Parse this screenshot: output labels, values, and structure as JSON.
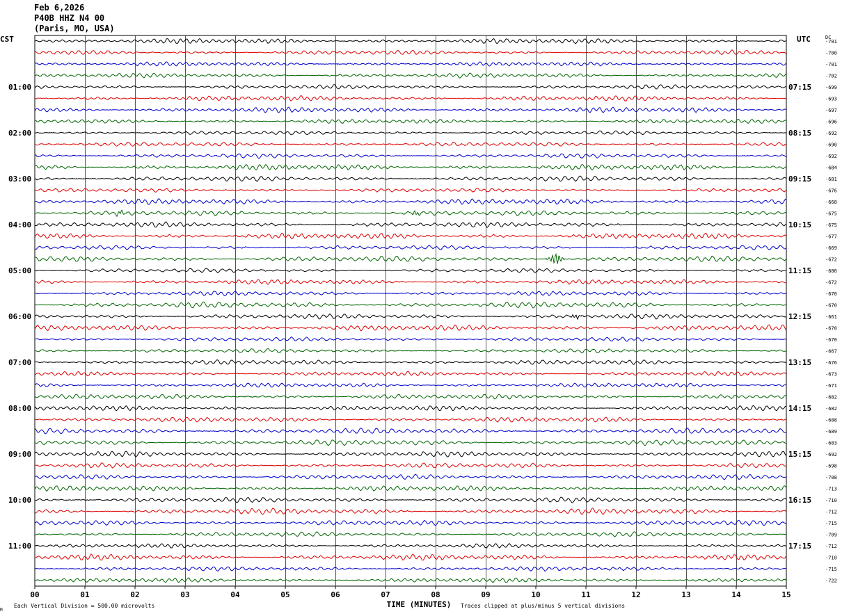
{
  "header": {
    "date": "Feb 6,2026",
    "station": "P40B HHZ N4 00",
    "location": "(Paris, MO, USA)"
  },
  "chart_data": {
    "type": "line",
    "subtype": "helicorder",
    "left_axis_label": "CST",
    "right_axis_label": "UTC",
    "dc_label": "DC",
    "xlabel": "TIME (MINUTES)",
    "x_ticks": [
      "00",
      "01",
      "02",
      "03",
      "04",
      "05",
      "06",
      "07",
      "08",
      "09",
      "10",
      "11",
      "12",
      "13",
      "14",
      "15"
    ],
    "xlim": [
      0,
      15
    ],
    "left_time_labels": [
      "01:00",
      "02:00",
      "03:00",
      "04:00",
      "05:00",
      "06:00",
      "07:00",
      "08:00",
      "09:00",
      "10:00",
      "11:00"
    ],
    "right_time_labels": [
      "07:15",
      "08:15",
      "09:15",
      "10:15",
      "11:15",
      "12:15",
      "13:15",
      "14:15",
      "15:15",
      "16:15",
      "17:15"
    ],
    "time_label_first_row": 4,
    "time_label_row_step": 4,
    "rows": 48,
    "trace_colors": [
      "#000000",
      "#e00000",
      "#0000cc",
      "#006600"
    ],
    "dc_offsets": [
      "-701",
      "-700",
      "-701",
      "-702",
      "-699",
      "-693",
      "-697",
      "-696",
      "-692",
      "-690",
      "-692",
      "-684",
      "-681",
      "-676",
      "-668",
      "-675",
      "-675",
      "-677",
      "-669",
      "-672",
      "-680",
      "-672",
      "-670",
      "-670",
      "-661",
      "-670",
      "-670",
      "-667",
      "-676",
      "-673",
      "-671",
      "-682",
      "-682",
      "-688",
      "-689",
      "-683",
      "-692",
      "-698",
      "-708",
      "-713",
      "-710",
      "-712",
      "-715",
      "-709",
      "-712",
      "-710",
      "-715",
      "-722"
    ],
    "events": [
      {
        "row": 19,
        "minute": 10.4,
        "amplitude": "large"
      },
      {
        "row": 15,
        "minute": 1.7,
        "amplitude": "small"
      },
      {
        "row": 15,
        "minute": 7.6,
        "amplitude": "small"
      },
      {
        "row": 24,
        "minute": 10.8,
        "amplitude": "small"
      }
    ],
    "footer_left": "Each Vertical Division =  500.00 microvolts",
    "footer_right": "Traces clipped at plus/minus 5 vertical divisions",
    "corner_mark": "M"
  }
}
